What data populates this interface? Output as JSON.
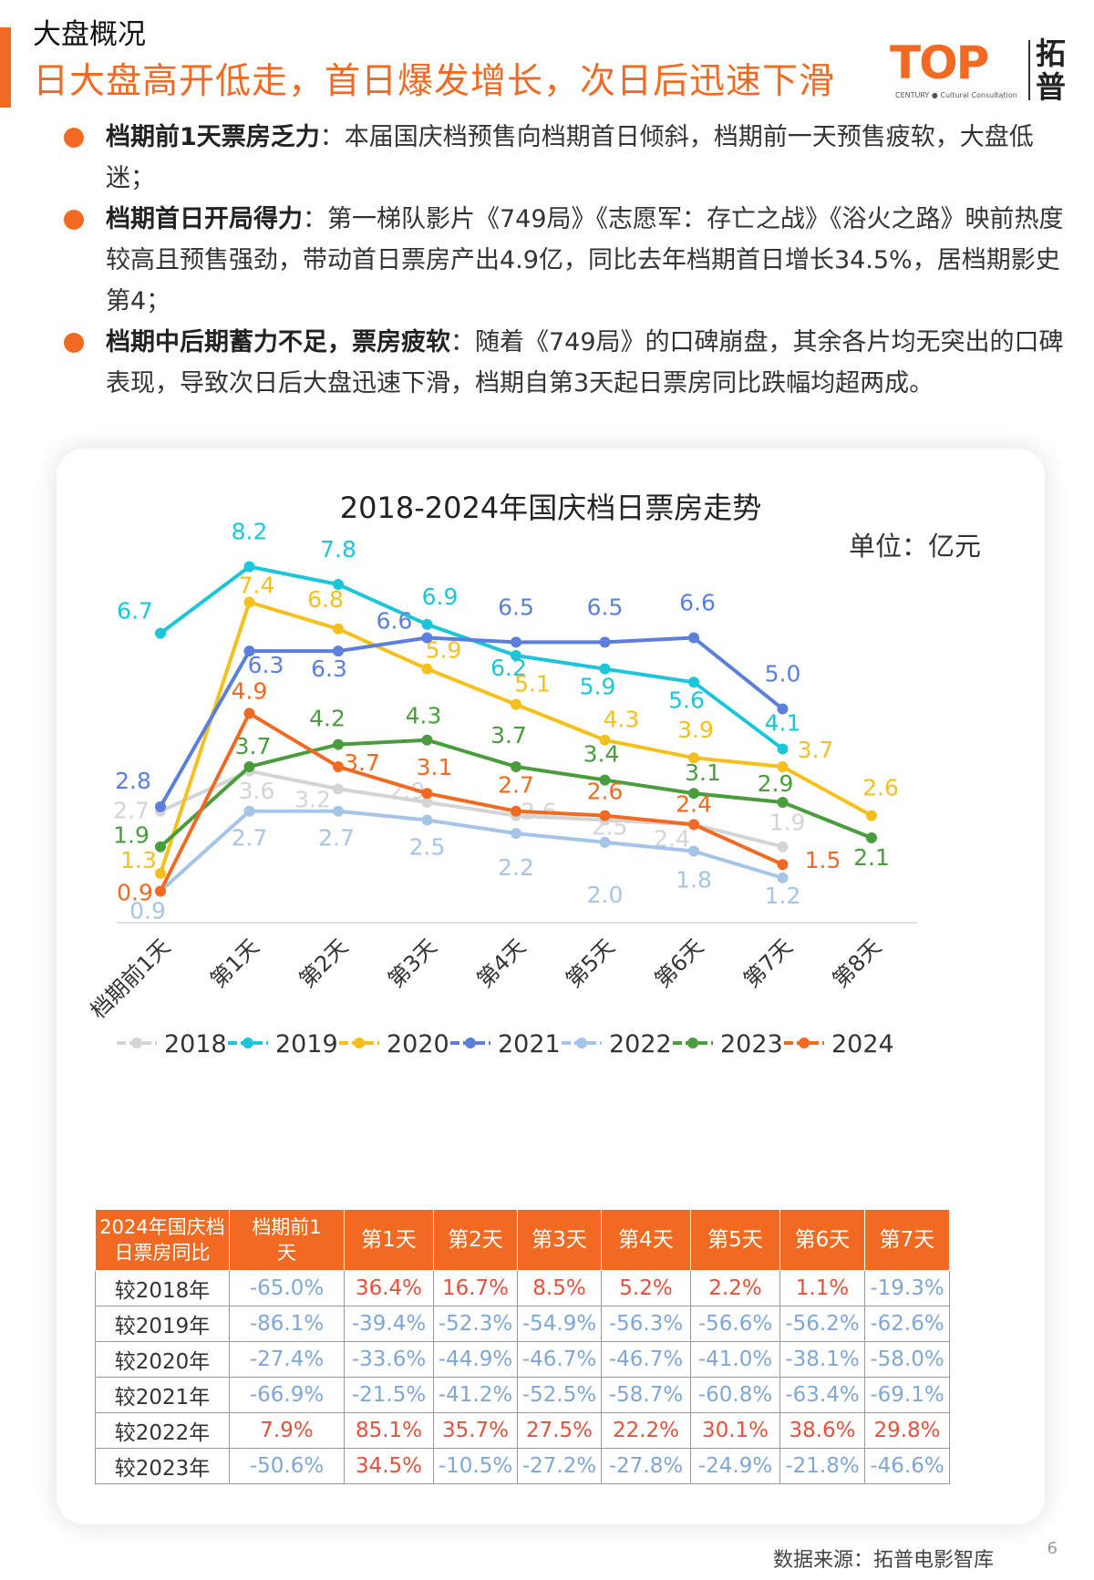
{
  "header": {
    "section": "大盘概况",
    "headline": "日大盘高开低走，首日爆发增长，次日后迅速下滑",
    "logo_top": "TOP",
    "logo_sub": "CENTURY ● Cultural Consultation",
    "logo_cn": "拓普"
  },
  "bullets": [
    {
      "title": "档期前1天票房乏力",
      "text": "：本届国庆档预售向档期首日倾斜，档期前一天预售疲软，大盘低迷；"
    },
    {
      "title": "档期首日开局得力",
      "text": "：第一梯队影片《749局》《志愿军：存亡之战》《浴火之路》映前热度较高且预售强劲，带动首日票房产出4.9亿，同比去年档期首日增长34.5%，居档期影史第4；"
    },
    {
      "title": "档期中后期蓄力不足，票房疲软",
      "text": "：随着《749局》的口碑崩盘，其余各片均无突出的口碑表现，导致次日后大盘迅速下滑，档期自第3天起日票房同比跌幅均超两成。"
    }
  ],
  "chart_data": {
    "type": "line",
    "title": "2018-2024年国庆档日票房走势",
    "unit": "单位：亿元",
    "categories": [
      "档期前1天",
      "第1天",
      "第2天",
      "第3天",
      "第4天",
      "第5天",
      "第6天",
      "第7天",
      "第8天"
    ],
    "ylim": [
      0.5,
      8.6
    ],
    "legend_position": "bottom",
    "series": [
      {
        "name": "2018",
        "color": "#d4d4d4",
        "values": [
          2.7,
          3.6,
          3.2,
          2.9,
          2.6,
          2.5,
          2.4,
          1.9,
          null
        ]
      },
      {
        "name": "2019",
        "color": "#1bc6d8",
        "values": [
          6.7,
          8.2,
          7.8,
          6.9,
          6.2,
          5.9,
          5.6,
          4.1,
          null
        ]
      },
      {
        "name": "2020",
        "color": "#f5bf1c",
        "values": [
          1.3,
          7.4,
          6.8,
          5.9,
          5.1,
          4.3,
          3.9,
          3.7,
          2.6
        ]
      },
      {
        "name": "2021",
        "color": "#5b7fdb",
        "values": [
          2.8,
          6.3,
          6.3,
          6.6,
          6.5,
          6.5,
          6.6,
          5.0,
          null
        ]
      },
      {
        "name": "2022",
        "color": "#a5c5e8",
        "values": [
          0.9,
          2.7,
          2.7,
          2.5,
          2.2,
          2.0,
          1.8,
          1.2,
          null
        ]
      },
      {
        "name": "2023",
        "color": "#4a9d3c",
        "values": [
          1.9,
          3.7,
          4.2,
          4.3,
          3.7,
          3.4,
          3.1,
          2.9,
          2.1
        ]
      },
      {
        "name": "2024",
        "color": "#f26a21",
        "values": [
          0.9,
          4.9,
          3.7,
          3.1,
          2.7,
          2.6,
          2.4,
          1.5,
          null
        ]
      }
    ]
  },
  "table": {
    "corner": "2024年国庆档日票房同比",
    "columns": [
      "档期前1天",
      "第1天",
      "第2天",
      "第3天",
      "第4天",
      "第5天",
      "第6天",
      "第7天"
    ],
    "rows": [
      {
        "label": "较2018年",
        "values": [
          "-65.0%",
          "36.4%",
          "16.7%",
          "8.5%",
          "5.2%",
          "2.2%",
          "1.1%",
          "-19.3%"
        ]
      },
      {
        "label": "较2019年",
        "values": [
          "-86.1%",
          "-39.4%",
          "-52.3%",
          "-54.9%",
          "-56.3%",
          "-56.6%",
          "-56.2%",
          "-62.6%"
        ]
      },
      {
        "label": "较2020年",
        "values": [
          "-27.4%",
          "-33.6%",
          "-44.9%",
          "-46.7%",
          "-46.7%",
          "-41.0%",
          "-38.1%",
          "-58.0%"
        ]
      },
      {
        "label": "较2021年",
        "values": [
          "-66.9%",
          "-21.5%",
          "-41.2%",
          "-52.5%",
          "-58.7%",
          "-60.8%",
          "-63.4%",
          "-69.1%"
        ]
      },
      {
        "label": "较2022年",
        "values": [
          "7.9%",
          "85.1%",
          "35.7%",
          "27.5%",
          "22.2%",
          "30.1%",
          "38.6%",
          "29.8%"
        ]
      },
      {
        "label": "较2023年",
        "values": [
          "-50.6%",
          "34.5%",
          "-10.5%",
          "-27.2%",
          "-27.8%",
          "-24.9%",
          "-21.8%",
          "-46.6%"
        ]
      }
    ]
  },
  "footer": {
    "source": "数据来源：拓普电影智库",
    "page": "6"
  }
}
